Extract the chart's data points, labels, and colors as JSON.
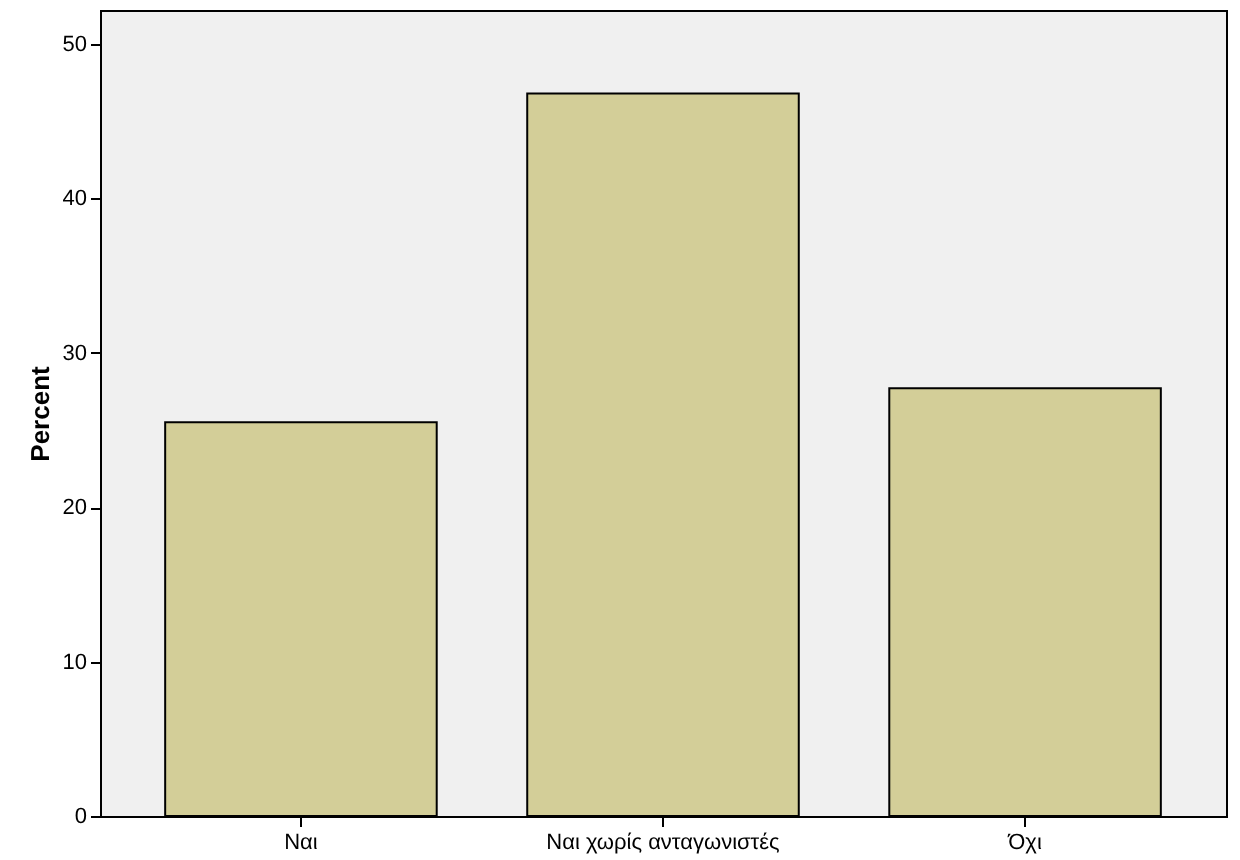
{
  "chart_data": {
    "type": "bar",
    "ylabel": "Percent",
    "categories": [
      "Ναι",
      "Ναι χωρίς ανταγωνιστές",
      "Όχι"
    ],
    "values": [
      25.5,
      46.8,
      27.7
    ],
    "color": "#d3ce98",
    "ylim": [
      0,
      52.2
    ],
    "yticks": [
      0,
      10,
      20,
      30,
      40,
      50
    ]
  }
}
